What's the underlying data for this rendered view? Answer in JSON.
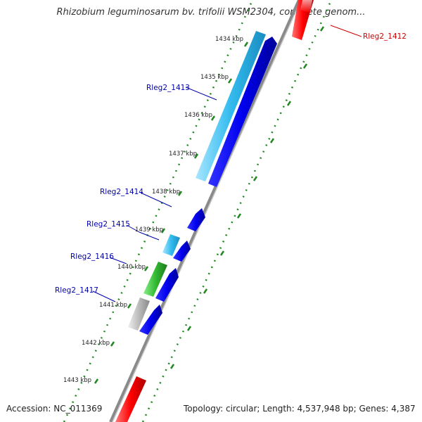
{
  "title": "Rhizobium leguminosarum bv. trifolii WSM2304, complete genom...",
  "footer": {
    "accession": "Accession: NC_011369",
    "topology": "Topology: circular; Length: 4,537,948 bp; Genes: 4,387"
  },
  "colors": {
    "backbone": "#8a8a8a",
    "forward_gene": "#0000ee",
    "reverse_gene_light_blue": "#33bbee",
    "reverse_gene_green": "#33bb33",
    "reverse_gene_gray": "#bbbbbb",
    "highlight_gene": "#ff0000",
    "tick_dots": "#228822",
    "label_blue": "#0000aa",
    "label_red": "#cc0000"
  },
  "ticks": [
    "1434 kbp",
    "1435 kbp",
    "1436 kbp",
    "1437 kbp",
    "1438 kbp",
    "1439 kbp",
    "1440 kbp",
    "1441 kbp",
    "1442 kbp",
    "1443 kbp"
  ],
  "genes": [
    {
      "label": "Rleg2_1412",
      "color": "red"
    },
    {
      "label": "Rleg2_1413",
      "color": "blue"
    },
    {
      "label": "Rleg2_1414",
      "color": "blue"
    },
    {
      "label": "Rleg2_1415",
      "color": "blue"
    },
    {
      "label": "Rleg2_1416",
      "color": "blue"
    },
    {
      "label": "Rleg2_1417",
      "color": "blue"
    }
  ]
}
